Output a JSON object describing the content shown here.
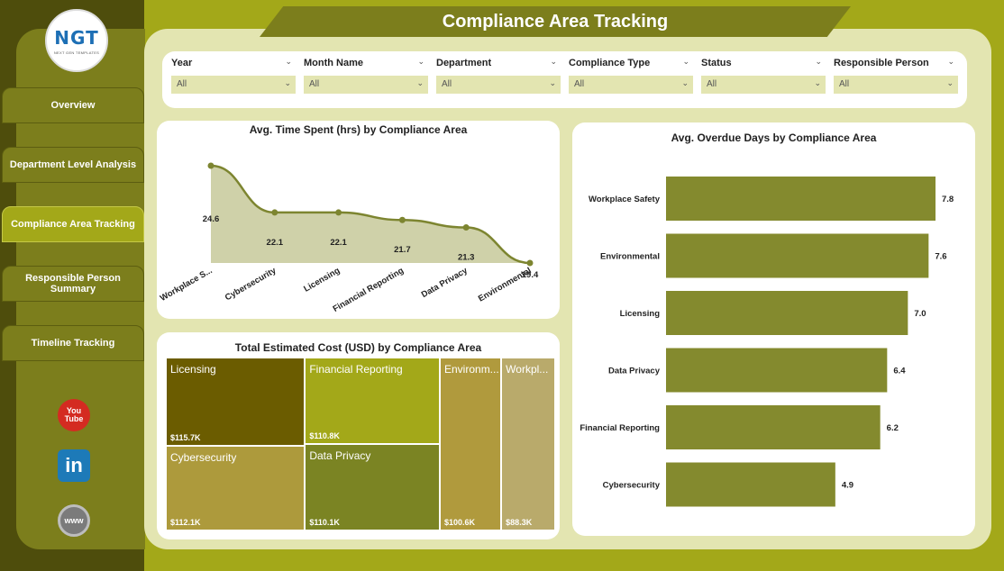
{
  "header": {
    "title": "Compliance Area Tracking"
  },
  "logo": {
    "text": "NGT",
    "subtitle": "NEXT GEN TEMPLATES"
  },
  "sidebar": {
    "items": [
      {
        "label": "Overview"
      },
      {
        "label": "Department Level Analysis"
      },
      {
        "label": "Compliance Area Tracking"
      },
      {
        "label": "Responsible Person Summary"
      },
      {
        "label": "Timeline Tracking"
      }
    ],
    "social": [
      {
        "icon": "youtube-icon",
        "text": "You Tube",
        "color": "#d42b21"
      },
      {
        "icon": "linkedin-icon",
        "text": "in",
        "color": "#1d7ab8"
      },
      {
        "icon": "globe-icon",
        "text": "www",
        "color": "#7b7b7b"
      }
    ]
  },
  "filters": [
    {
      "label": "Year",
      "value": "All"
    },
    {
      "label": "Month Name",
      "value": "All"
    },
    {
      "label": "Department",
      "value": "All"
    },
    {
      "label": "Compliance Type",
      "value": "All"
    },
    {
      "label": "Status",
      "value": "All"
    },
    {
      "label": "Responsible Person",
      "value": "All"
    }
  ],
  "colors": {
    "accent": "#a3a819",
    "dark": "#7c7e1c",
    "bar": "#848a2e",
    "area": "#cfd1a9",
    "line": "#7d8530"
  },
  "chart_data": [
    {
      "type": "area",
      "title": "Avg. Time Spent (hrs) by Compliance Area",
      "categories": [
        "Workplace S...",
        "Cybersecurity",
        "Licensing",
        "Financial Reporting",
        "Data Privacy",
        "Environmental"
      ],
      "values": [
        24.6,
        22.1,
        22.1,
        21.7,
        21.3,
        19.4
      ],
      "value_labels": [
        "24.6",
        "22.1",
        "22.1",
        "21.7",
        "21.3",
        "19.4"
      ]
    },
    {
      "type": "bar",
      "orientation": "horizontal",
      "title": "Avg. Overdue Days by Compliance Area",
      "categories": [
        "Workplace Safety",
        "Environmental",
        "Licensing",
        "Data Privacy",
        "Financial Reporting",
        "Cybersecurity"
      ],
      "values": [
        7.8,
        7.6,
        7.0,
        6.4,
        6.2,
        4.9
      ],
      "value_labels": [
        "7.8",
        "7.6",
        "7.0",
        "6.4",
        "6.2",
        "4.9"
      ]
    },
    {
      "type": "treemap",
      "title": "Total Estimated Cost (USD) by Compliance Area",
      "items": [
        {
          "name": "Licensing",
          "value": 115.7,
          "label": "$115.7K",
          "color": "#6b5c00"
        },
        {
          "name": "Cybersecurity",
          "value": 112.1,
          "label": "$112.1K",
          "color": "#ad9a3c"
        },
        {
          "name": "Financial Reporting",
          "value": 110.8,
          "label": "$110.8K",
          "color": "#a3a819"
        },
        {
          "name": "Data Privacy",
          "value": 110.1,
          "label": "$110.1K",
          "color": "#7b8423"
        },
        {
          "name": "Environm...",
          "value": 100.6,
          "label": "$100.6K",
          "color": "#b09a3d"
        },
        {
          "name": "Workpl...",
          "value": 88.3,
          "label": "$88.3K",
          "color": "#b9aa6b"
        }
      ]
    }
  ]
}
